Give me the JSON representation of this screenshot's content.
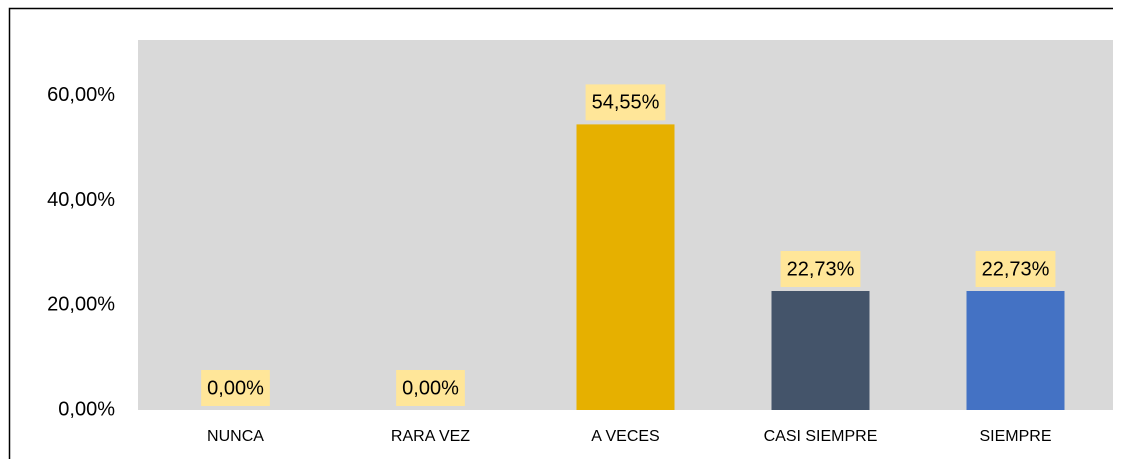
{
  "chart_data": {
    "type": "bar",
    "categories": [
      "NUNCA",
      "RARA VEZ",
      "A VECES",
      "CASI SIEMPRE",
      "SIEMPRE"
    ],
    "values": [
      0,
      0,
      54.55,
      22.73,
      22.73
    ],
    "value_labels": [
      "0,00%",
      "0,00%",
      "54,55%",
      "22,73%",
      "22,73%"
    ],
    "colors": [
      "#e6b000",
      "#e6b000",
      "#e6b000",
      "#44546a",
      "#4472c4"
    ],
    "ylim": [
      0,
      70
    ],
    "yticks": [
      {
        "value": 0,
        "label": "0,00%"
      },
      {
        "value": 20,
        "label": "20,00%"
      },
      {
        "value": 40,
        "label": "40,00%"
      },
      {
        "value": 60,
        "label": "60,00%"
      }
    ],
    "grid": false
  }
}
